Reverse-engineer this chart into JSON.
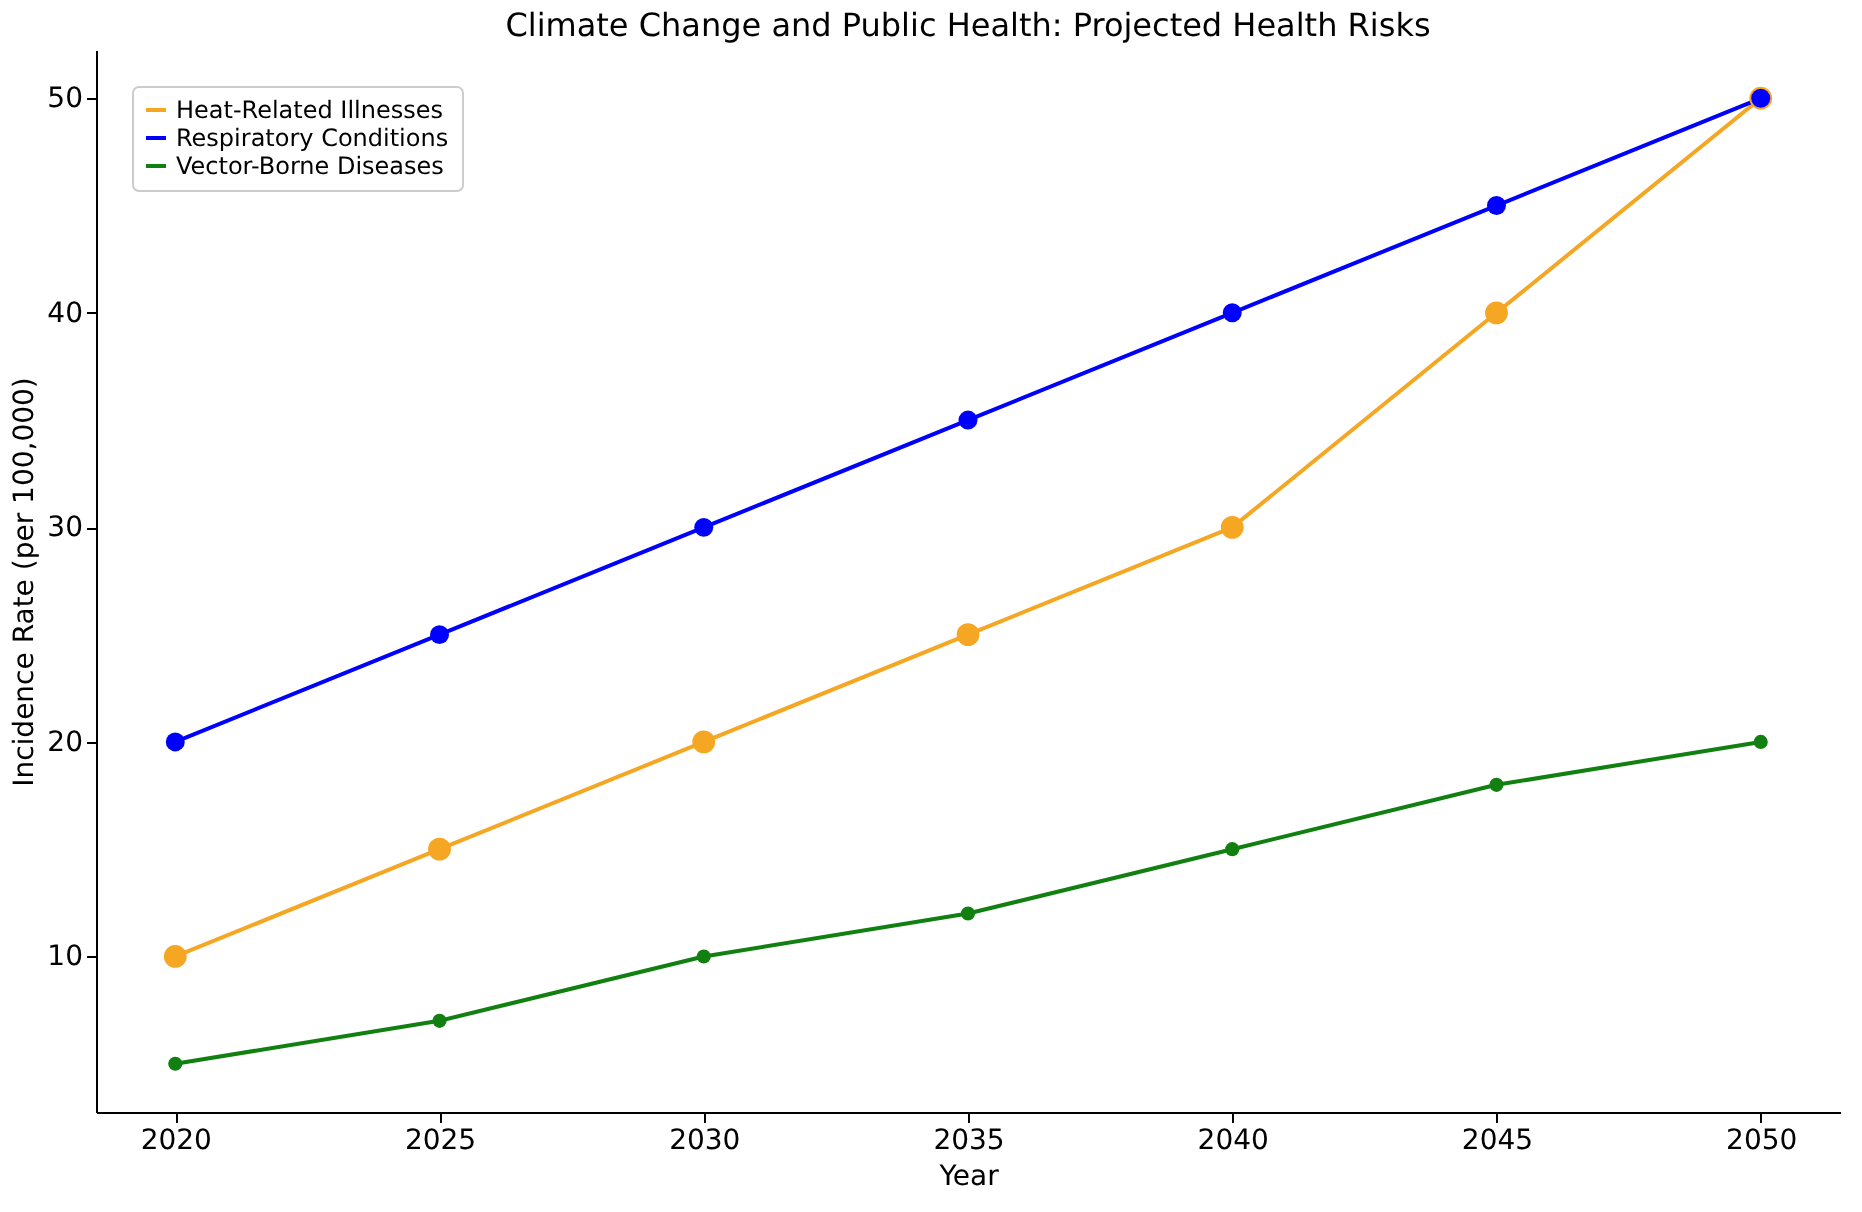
{
  "chart_data": {
    "type": "line",
    "title": "Climate Change and Public Health: Projected Health Risks",
    "xlabel": "Year",
    "ylabel": "Incidence Rate (per 100,000)",
    "x": [
      2020,
      2025,
      2030,
      2035,
      2040,
      2045,
      2050
    ],
    "series": [
      {
        "name": "Heat-Related Illnesses",
        "color": "#f5a623",
        "values": [
          10,
          15,
          20,
          25,
          30,
          40,
          50
        ]
      },
      {
        "name": "Respiratory Conditions",
        "color": "#0000ff",
        "values": [
          20,
          25,
          30,
          35,
          40,
          45,
          50
        ]
      },
      {
        "name": "Vector-Borne Diseases",
        "color": "#118011",
        "values": [
          5,
          7,
          10,
          12,
          15,
          18,
          20
        ]
      }
    ],
    "xlim": [
      2018.5,
      2051.5
    ],
    "xticks": [
      2020,
      2025,
      2030,
      2035,
      2040,
      2045,
      2050
    ],
    "ylim": [
      2.75,
      52.25
    ],
    "yticks": [
      10,
      20,
      30,
      40,
      50
    ],
    "grid": false,
    "legend": "top left",
    "marker": "circle",
    "line_style": "solid"
  }
}
